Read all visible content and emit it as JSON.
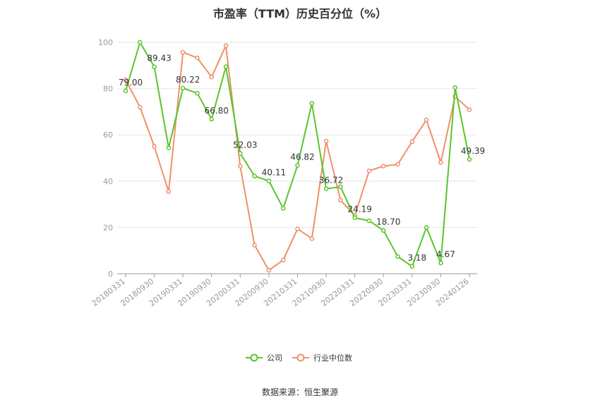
{
  "chart_data": {
    "type": "line",
    "title": "市盈率（TTM）历史百分位（%）",
    "source": "数据来源：恒生聚源",
    "x_tick_labels": [
      "20180331",
      "20180930",
      "20190331",
      "20190930",
      "20200331",
      "20200930",
      "20210331",
      "20210930",
      "20220331",
      "20220930",
      "20230331",
      "20230930",
      "20240126"
    ],
    "ylim": [
      0,
      100
    ],
    "y_ticks": [
      "0",
      "20",
      "40",
      "60",
      "80",
      "100"
    ],
    "grid": true,
    "legend_position": "bottom",
    "series": [
      {
        "name": "公司",
        "color": "#5ac52c",
        "values": [
          79.0,
          100,
          89.43,
          54.4,
          80.22,
          78,
          66.8,
          89.5,
          52.03,
          42.2,
          40.11,
          28.3,
          46.82,
          73.6,
          36.72,
          37.6,
          24.19,
          22.9,
          18.7,
          7.4,
          3.18,
          20.0,
          4.67,
          80.5,
          49.39
        ]
      },
      {
        "name": "行业中位数",
        "color": "#f0906a",
        "values": [
          83.8,
          72.0,
          55.0,
          35.5,
          95.7,
          93.3,
          85.0,
          98.6,
          46.5,
          12.4,
          1.5,
          5.9,
          19.4,
          15.2,
          57.3,
          31.8,
          25.1,
          44.5,
          46.5,
          47.3,
          57.1,
          66.5,
          48.1,
          76.6,
          70.9
        ]
      }
    ],
    "data_labels": [
      {
        "index": 0,
        "text": "79.00"
      },
      {
        "index": 2,
        "text": "89.43"
      },
      {
        "index": 4,
        "text": "80.22"
      },
      {
        "index": 6,
        "text": "66.80"
      },
      {
        "index": 8,
        "text": "52.03"
      },
      {
        "index": 10,
        "text": "40.11"
      },
      {
        "index": 12,
        "text": "46.82"
      },
      {
        "index": 14,
        "text": "36.72"
      },
      {
        "index": 16,
        "text": "24.19"
      },
      {
        "index": 18,
        "text": "18.70"
      },
      {
        "index": 20,
        "text": "3.18"
      },
      {
        "index": 22,
        "text": "4.67"
      },
      {
        "index": 24,
        "text": "49.39"
      }
    ]
  }
}
